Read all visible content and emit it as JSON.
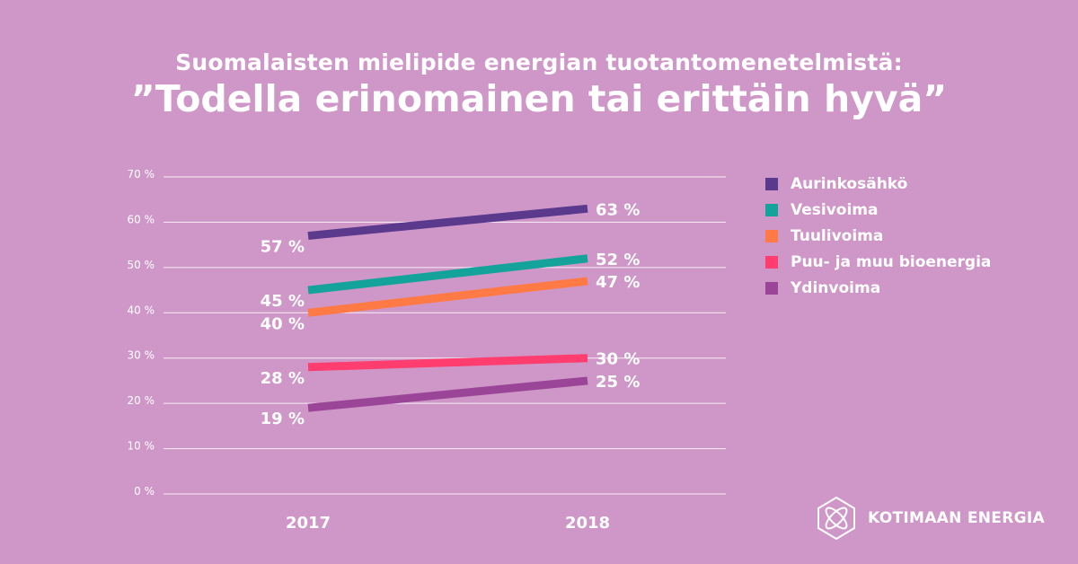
{
  "header": {
    "subtitle": "Suomalaisten mielipide energian tuotantomenetelmistä:",
    "title": "”Todella erinomainen tai erittäin hyvä”"
  },
  "brand": {
    "name": "KOTIMAAN ENERGIA",
    "icon": "kotimaan-energia-logo"
  },
  "colors": {
    "background": "#cf97c8",
    "grid": "#ffffff",
    "text": "#ffffff"
  },
  "chart_data": {
    "type": "line",
    "x": [
      "2017",
      "2018"
    ],
    "ylim": [
      0,
      70
    ],
    "yticks": [
      "0 %",
      "10 %",
      "20 %",
      "30 %",
      "40 %",
      "50 %",
      "60 %",
      "70 %"
    ],
    "grid": true,
    "legend_position": "right",
    "series": [
      {
        "name": "Aurinkosähkö",
        "values": [
          57,
          63
        ],
        "labels": [
          "57 %",
          "63 %"
        ],
        "color": "#5b3a8e"
      },
      {
        "name": "Vesivoima",
        "values": [
          45,
          52
        ],
        "labels": [
          "45 %",
          "52 %"
        ],
        "color": "#13a39a"
      },
      {
        "name": "Tuulivoima",
        "values": [
          40,
          47
        ],
        "labels": [
          "40 %",
          "47 %"
        ],
        "color": "#ff7a45"
      },
      {
        "name": "Puu- ja muu bioenergia",
        "values": [
          28,
          30
        ],
        "labels": [
          "28 %",
          "30 %"
        ],
        "color": "#ff3d6e"
      },
      {
        "name": "Ydinvoima",
        "values": [
          19,
          25
        ],
        "labels": [
          "19 %",
          "25 %"
        ],
        "color": "#9b4598"
      }
    ]
  }
}
